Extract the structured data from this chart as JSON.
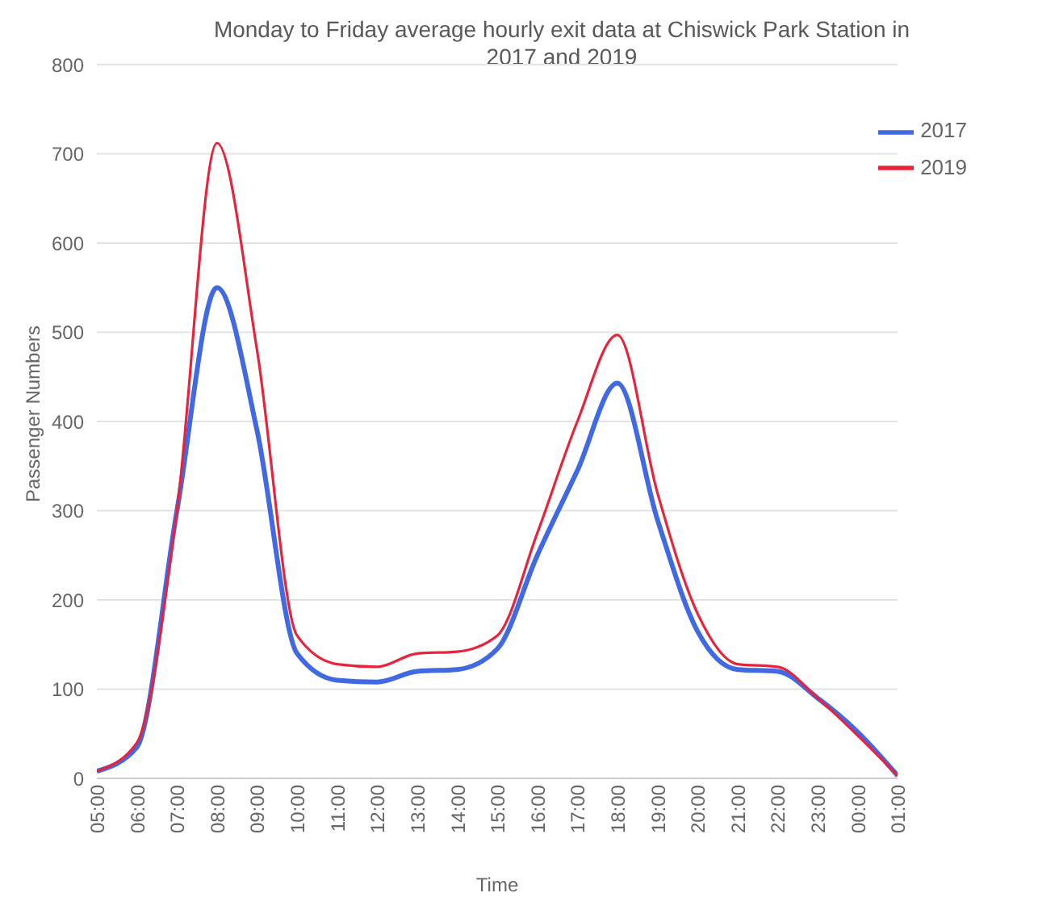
{
  "chart_data": {
    "type": "line",
    "title": "Monday to Friday average hourly exit data at Chiswick Park Station in 2017 and 2019",
    "xlabel": "Time",
    "ylabel": "Passenger Numbers",
    "categories": [
      "05:00",
      "06:00",
      "07:00",
      "08:00",
      "09:00",
      "10:00",
      "11:00",
      "12:00",
      "13:00",
      "14:00",
      "15:00",
      "16:00",
      "17:00",
      "18:00",
      "19:00",
      "20:00",
      "21:00",
      "22:00",
      "23:00",
      "00:00",
      "01:00"
    ],
    "series": [
      {
        "name": "2017",
        "color": "#4169e1",
        "values": [
          8,
          35,
          300,
          550,
          390,
          140,
          110,
          108,
          120,
          122,
          145,
          250,
          345,
          443,
          290,
          165,
          122,
          120,
          90,
          52,
          3
        ]
      },
      {
        "name": "2019",
        "color": "#e8243c",
        "values": [
          8,
          40,
          300,
          712,
          480,
          160,
          128,
          125,
          140,
          142,
          160,
          275,
          400,
          497,
          320,
          185,
          128,
          125,
          90,
          48,
          3
        ]
      }
    ],
    "ylim": [
      0,
      800
    ],
    "yticks": [
      0,
      100,
      200,
      300,
      400,
      500,
      600,
      700,
      800
    ],
    "grid": "y",
    "legend": "top right",
    "marker": "none",
    "line_style": "solid"
  }
}
